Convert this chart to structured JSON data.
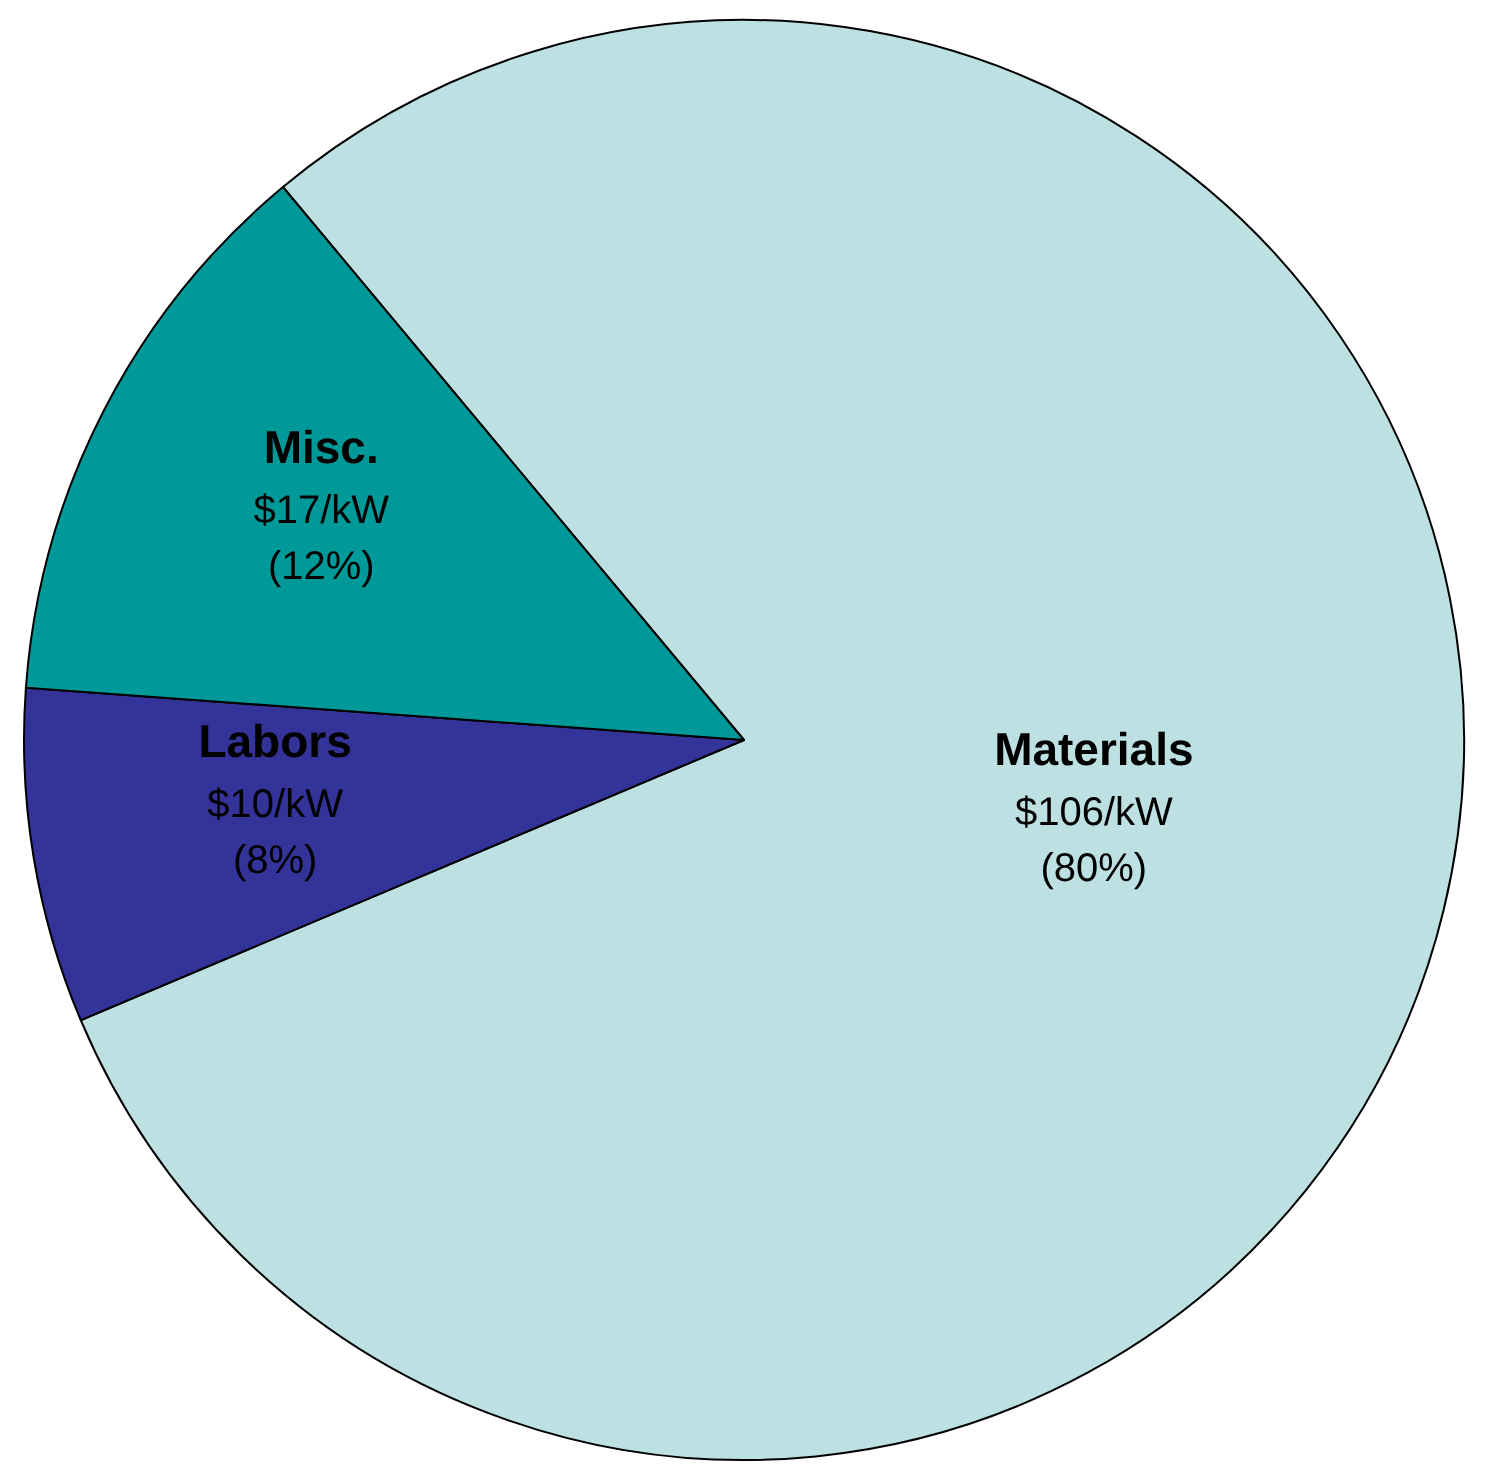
{
  "chart_data": {
    "type": "pie",
    "categories": [
      "Materials",
      "Labors",
      "Misc."
    ],
    "values": [
      106,
      10,
      17
    ],
    "colors": [
      "#bde0e3",
      "#333399",
      "#009999"
    ],
    "value_labels": [
      "$106/kW (80%)",
      "$10/kW (8%)",
      "$17/kW (12%)"
    ]
  }
}
